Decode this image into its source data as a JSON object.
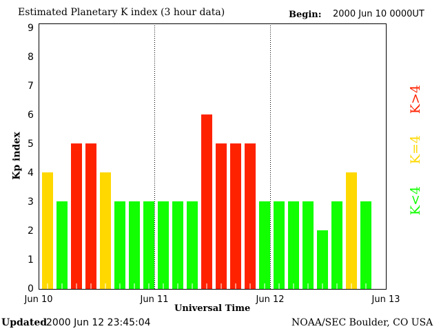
{
  "chart_data": {
    "type": "bar",
    "title": "Estimated Planetary K index (3 hour data)",
    "begin_label": "Begin:",
    "begin_value": "2000 Jun 10 0000UT",
    "ylabel": "Kp index",
    "xlabel": "Universal Time",
    "ylim": [
      0,
      9
    ],
    "yticks": [
      "0",
      "1",
      "2",
      "3",
      "4",
      "5",
      "6",
      "7",
      "8",
      "9"
    ],
    "xticks": [
      "Jun 10",
      "Jun 11",
      "Jun 12",
      "Jun 13"
    ],
    "bins_per_day": 8,
    "values": [
      4,
      3,
      5,
      5,
      4,
      3,
      3,
      3,
      3,
      3,
      3,
      6,
      5,
      5,
      5,
      3,
      3,
      3,
      3,
      2,
      3,
      4,
      3
    ],
    "colors": {
      "low": "#11ff00",
      "mid": "#ffd800",
      "high": "#ff2200"
    },
    "legend": [
      {
        "label": "K<4",
        "color": "#11ff00"
      },
      {
        "label": "K=4",
        "color": "#ffd800"
      },
      {
        "label": "K>4",
        "color": "#ff2200"
      }
    ]
  },
  "footer": {
    "updated_label": "Updated",
    "updated_value": "2000 Jun 12 23:45:04",
    "source": "NOAA/SEC Boulder, CO USA"
  }
}
